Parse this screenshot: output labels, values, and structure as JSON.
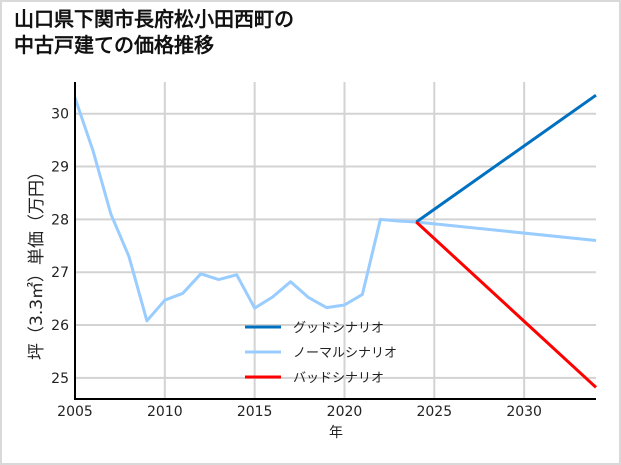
{
  "title_line1": "山口県下関市長府松小田西町の",
  "title_line2": "中古戸建ての価格推移",
  "chart_data": {
    "type": "line",
    "title": "山口県下関市長府松小田西町の中古戸建ての価格推移",
    "xlabel": "年",
    "ylabel": "坪（3.3㎡）単価（万円）",
    "xlim": [
      2005,
      2034
    ],
    "ylim": [
      24.6,
      30.6
    ],
    "x_ticks": [
      2005,
      2010,
      2015,
      2020,
      2025,
      2030
    ],
    "y_ticks": [
      25,
      26,
      27,
      28,
      29,
      30
    ],
    "grid": true,
    "legend_position": "lower center",
    "series": [
      {
        "name": "ノーマルシナリオ",
        "color": "#99ccff",
        "x": [
          2005,
          2006,
          2007,
          2008,
          2009,
          2010,
          2011,
          2012,
          2013,
          2014,
          2015,
          2016,
          2017,
          2018,
          2019,
          2020,
          2021,
          2022,
          2023,
          2024,
          2034
        ],
        "values": [
          30.3,
          29.3,
          28.1,
          27.3,
          26.08,
          26.47,
          26.6,
          26.97,
          26.86,
          26.95,
          26.32,
          26.53,
          26.82,
          26.52,
          26.33,
          26.38,
          26.58,
          28.0,
          27.97,
          27.95,
          27.6
        ]
      },
      {
        "name": "グッドシナリオ",
        "color": "#0070c0",
        "x": [
          2024,
          2034
        ],
        "values": [
          27.95,
          30.35
        ]
      },
      {
        "name": "バッドシナリオ",
        "color": "#ff0000",
        "x": [
          2024,
          2034
        ],
        "values": [
          27.95,
          24.82
        ]
      }
    ],
    "legend": [
      "グッドシナリオ",
      "ノーマルシナリオ",
      "バッドシナリオ"
    ]
  }
}
